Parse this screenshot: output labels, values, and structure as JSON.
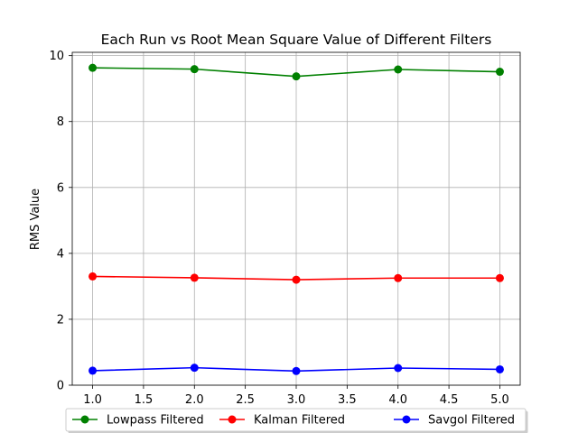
{
  "chart_data": {
    "type": "line",
    "title": "Each Run vs Root Mean Square Value of Different Filters",
    "xlabel": "",
    "ylabel": "RMS Value",
    "x": [
      1,
      2,
      3,
      4,
      5
    ],
    "xlim": [
      0.8,
      5.2
    ],
    "ylim": [
      0,
      10.1
    ],
    "xticks": [
      "1.0",
      "1.5",
      "2.0",
      "2.5",
      "3.0",
      "3.5",
      "4.0",
      "4.5",
      "5.0"
    ],
    "yticks": [
      "0",
      "2",
      "4",
      "6",
      "8",
      "10"
    ],
    "grid": true,
    "legend_position": "bottom-center",
    "series": [
      {
        "name": "Lowpass Filtered",
        "color": "#008000",
        "values": [
          9.63,
          9.59,
          9.37,
          9.58,
          9.51
        ]
      },
      {
        "name": "Kalman Filtered",
        "color": "#ff0000",
        "values": [
          3.3,
          3.26,
          3.2,
          3.25,
          3.25
        ]
      },
      {
        "name": "Savgol Filtered",
        "color": "#0000ff",
        "values": [
          0.44,
          0.53,
          0.43,
          0.52,
          0.48
        ]
      }
    ]
  }
}
